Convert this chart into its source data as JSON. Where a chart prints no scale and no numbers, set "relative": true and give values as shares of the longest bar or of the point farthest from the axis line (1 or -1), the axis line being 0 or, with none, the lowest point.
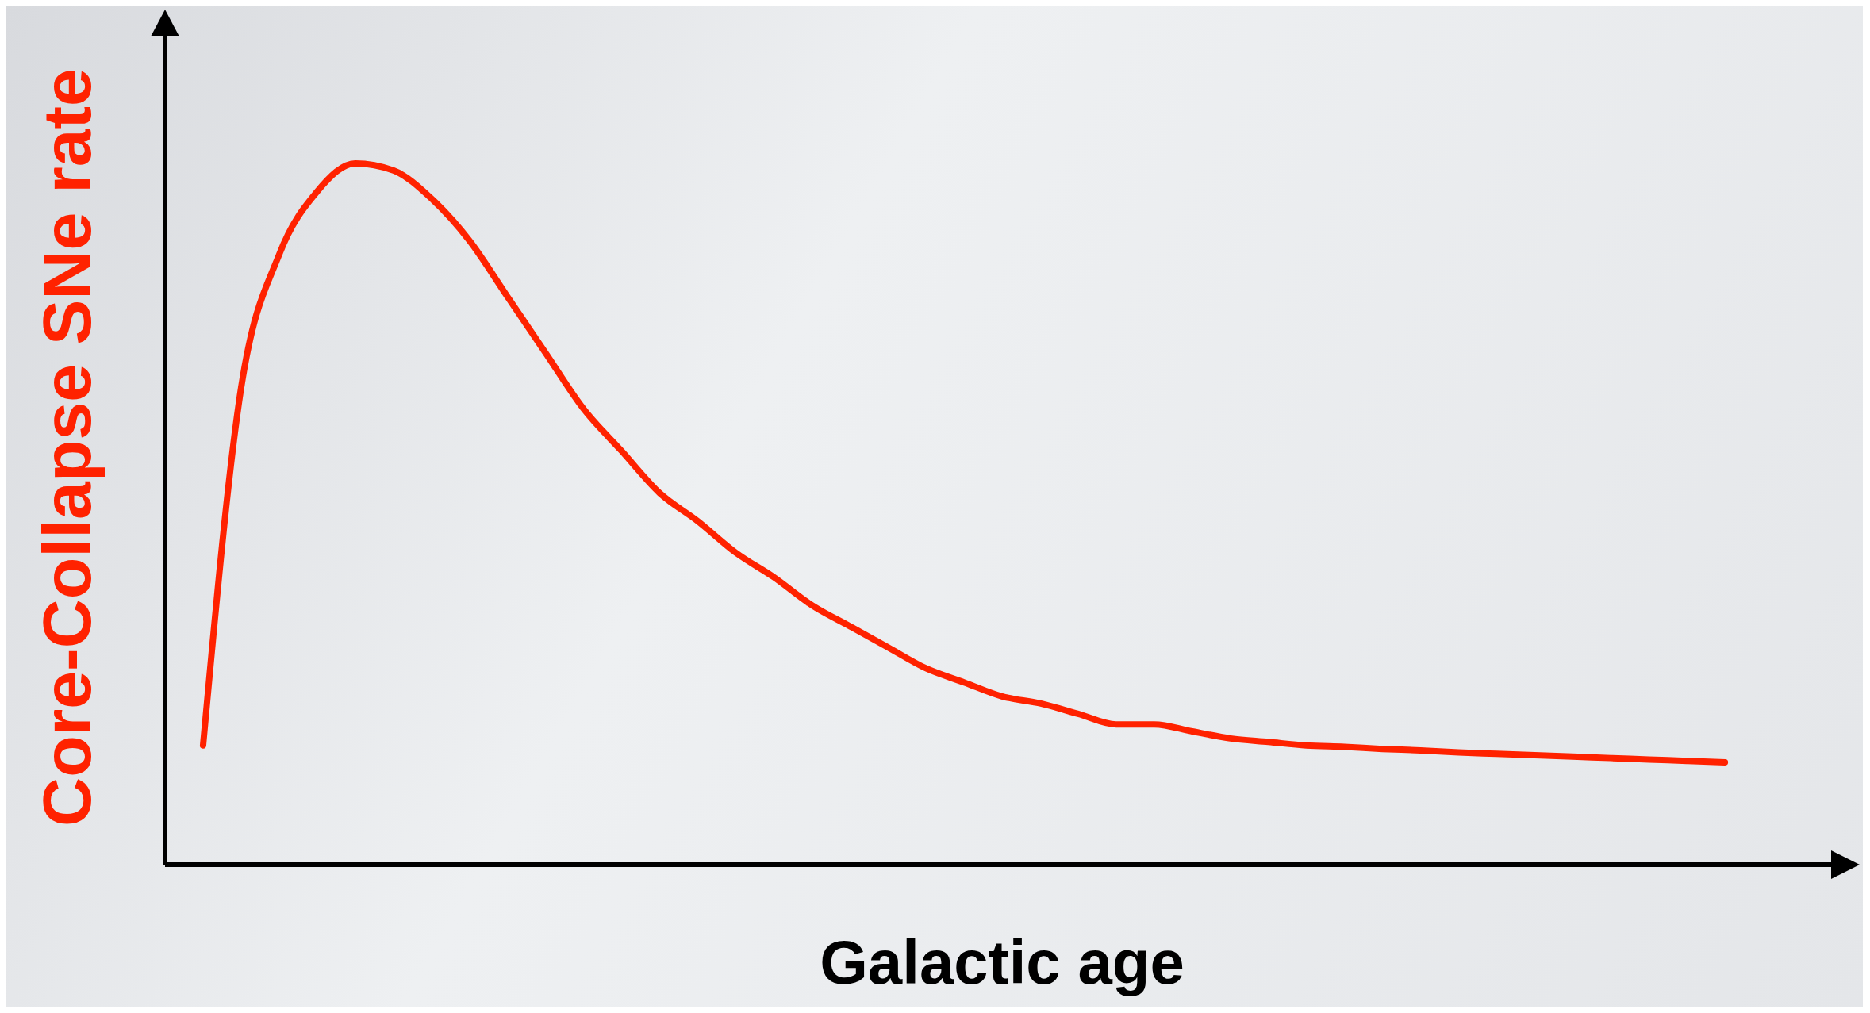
{
  "chart_data": {
    "type": "line",
    "relative": true,
    "xlabel": "Galactic age",
    "ylabel": "Core-Collapse SNe rate",
    "categories": [
      null,
      null,
      null,
      null,
      null,
      null,
      null,
      null,
      null,
      null,
      null,
      null,
      null,
      null,
      null,
      null,
      null,
      null,
      null,
      null,
      null,
      null,
      null,
      null,
      null,
      null,
      null,
      null,
      null,
      null,
      null,
      null,
      null,
      null,
      null,
      null,
      null,
      null,
      null,
      null,
      null,
      null,
      null,
      null,
      null
    ],
    "series": [
      {
        "color": "#ff2200",
        "values": [
          null,
          0.17,
          0.68,
          0.87,
          0.96,
          1,
          0.99,
          0.95,
          0.89,
          0.81,
          0.73,
          0.65,
          0.59,
          0.53,
          0.49,
          0.445,
          0.41,
          0.37,
          0.34,
          0.31,
          0.28,
          0.26,
          0.24,
          0.23,
          0.215,
          0.2,
          0.2,
          0.19,
          0.18,
          0.175,
          0.17,
          0.168,
          0.165,
          0.163,
          0.16,
          0.158,
          0.156,
          0.154,
          0.152,
          0.15,
          0.148,
          0.146,
          null,
          null,
          null
        ]
      }
    ]
  }
}
